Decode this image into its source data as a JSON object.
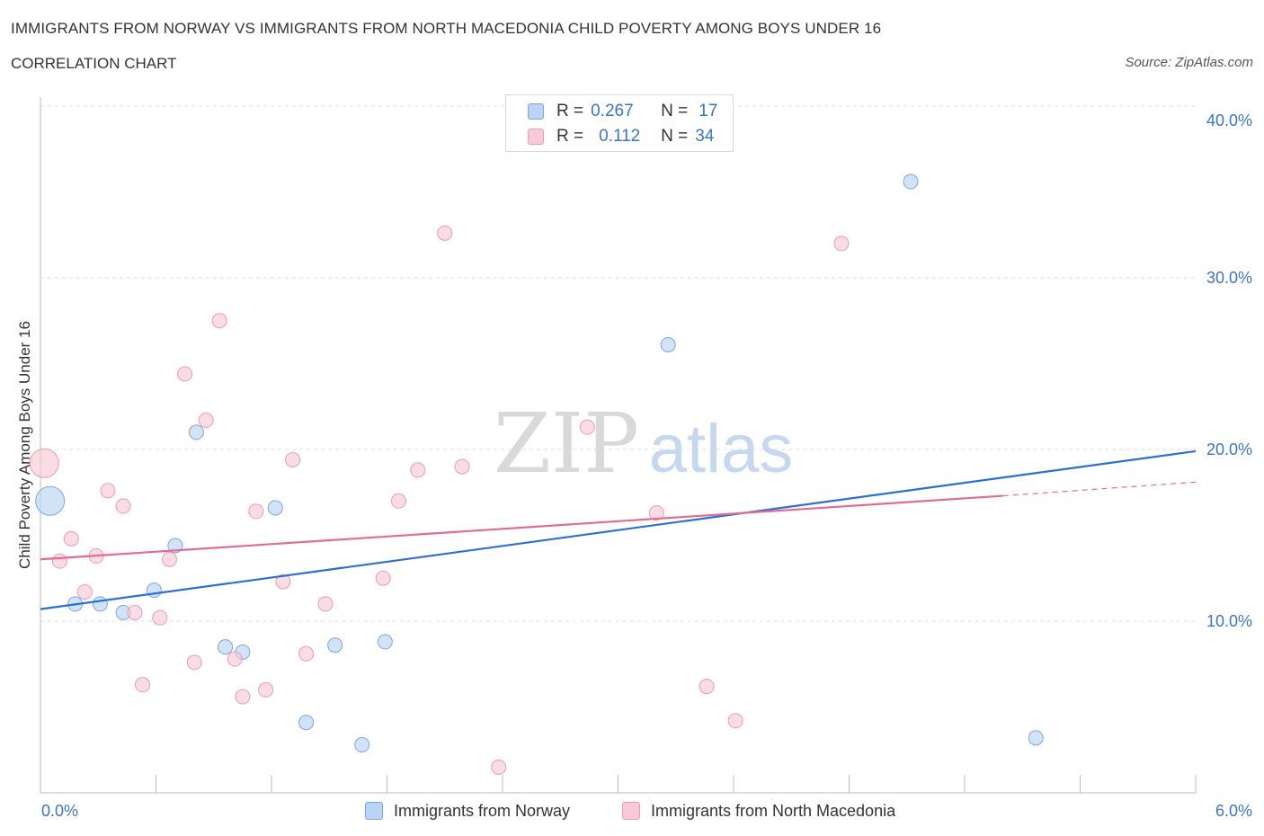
{
  "header": {
    "title": "IMMIGRANTS FROM NORWAY VS IMMIGRANTS FROM NORTH MACEDONIA CHILD POVERTY AMONG BOYS UNDER 16",
    "subtitle": "CORRELATION CHART",
    "source": "Source: ZipAtlas.com"
  },
  "watermark": {
    "zip": "ZIP",
    "atlas": "atlas"
  },
  "legend": {
    "rows": [
      {
        "r_label": "R =",
        "r_value": "0.267",
        "n_label": "N =",
        "n_value": "17"
      },
      {
        "r_label": "R =",
        "r_value": "0.112",
        "n_label": "N =",
        "n_value": "34"
      }
    ]
  },
  "colors": {
    "norway_fill": "#bcd4f3",
    "norway_stroke": "#7aa6e0",
    "norway_line": "#2b6fd1",
    "macedonia_fill": "#f8c9d6",
    "macedonia_stroke": "#ec9ab2",
    "macedonia_line": "#e26b95",
    "tick_text": "#3a74c9",
    "grid": "#dddddd"
  },
  "chart_data": {
    "type": "scatter",
    "title": "IMMIGRANTS FROM NORWAY VS IMMIGRANTS FROM NORTH MACEDONIA CHILD POVERTY AMONG BOYS UNDER 16",
    "xlabel": "",
    "ylabel": "Child Poverty Among Boys Under 16",
    "xlim": [
      0,
      6
    ],
    "ylim": [
      0,
      40
    ],
    "x_tick_labels": [
      "0.0%",
      "6.0%"
    ],
    "y_ticks": [
      10,
      20,
      30,
      40
    ],
    "y_tick_labels": [
      "10.0%",
      "20.0%",
      "30.0%",
      "40.0%"
    ],
    "series": [
      {
        "name": "Immigrants from Norway",
        "r": 0.267,
        "n": 17,
        "points": [
          {
            "x": 0.05,
            "y": 17.0,
            "big": true
          },
          {
            "x": 0.18,
            "y": 11.0
          },
          {
            "x": 0.31,
            "y": 11.0
          },
          {
            "x": 0.43,
            "y": 10.5
          },
          {
            "x": 0.59,
            "y": 11.8
          },
          {
            "x": 0.7,
            "y": 14.4
          },
          {
            "x": 0.81,
            "y": 21.0
          },
          {
            "x": 0.96,
            "y": 8.5
          },
          {
            "x": 1.05,
            "y": 8.2
          },
          {
            "x": 1.22,
            "y": 16.6
          },
          {
            "x": 1.38,
            "y": 4.1
          },
          {
            "x": 1.53,
            "y": 8.6
          },
          {
            "x": 1.67,
            "y": 2.8
          },
          {
            "x": 1.79,
            "y": 8.8
          },
          {
            "x": 3.26,
            "y": 26.1
          },
          {
            "x": 4.52,
            "y": 35.6
          },
          {
            "x": 5.17,
            "y": 3.2
          }
        ],
        "trend": {
          "x0": 0.0,
          "y0": 10.7,
          "x1": 6.0,
          "y1": 19.9
        }
      },
      {
        "name": "Immigrants from North Macedonia",
        "r": 0.112,
        "n": 34,
        "points": [
          {
            "x": 0.02,
            "y": 19.2,
            "big": true
          },
          {
            "x": 0.1,
            "y": 13.5
          },
          {
            "x": 0.16,
            "y": 14.8
          },
          {
            "x": 0.23,
            "y": 11.7
          },
          {
            "x": 0.29,
            "y": 13.8
          },
          {
            "x": 0.35,
            "y": 17.6
          },
          {
            "x": 0.43,
            "y": 16.7
          },
          {
            "x": 0.49,
            "y": 10.5
          },
          {
            "x": 0.53,
            "y": 6.3
          },
          {
            "x": 0.62,
            "y": 10.2
          },
          {
            "x": 0.67,
            "y": 13.6
          },
          {
            "x": 0.75,
            "y": 24.4
          },
          {
            "x": 0.8,
            "y": 7.6
          },
          {
            "x": 0.86,
            "y": 21.7
          },
          {
            "x": 0.93,
            "y": 27.5
          },
          {
            "x": 1.01,
            "y": 7.8
          },
          {
            "x": 1.05,
            "y": 5.6
          },
          {
            "x": 1.12,
            "y": 16.4
          },
          {
            "x": 1.17,
            "y": 6.0
          },
          {
            "x": 1.26,
            "y": 12.3
          },
          {
            "x": 1.31,
            "y": 19.4
          },
          {
            "x": 1.38,
            "y": 8.1
          },
          {
            "x": 1.48,
            "y": 11.0
          },
          {
            "x": 1.78,
            "y": 12.5
          },
          {
            "x": 1.86,
            "y": 17.0
          },
          {
            "x": 1.96,
            "y": 18.8
          },
          {
            "x": 2.1,
            "y": 32.6
          },
          {
            "x": 2.19,
            "y": 19.0
          },
          {
            "x": 2.38,
            "y": 1.5
          },
          {
            "x": 2.84,
            "y": 21.3
          },
          {
            "x": 3.2,
            "y": 16.3
          },
          {
            "x": 3.46,
            "y": 6.2
          },
          {
            "x": 3.61,
            "y": 4.2
          },
          {
            "x": 4.16,
            "y": 32.0
          }
        ],
        "trend": {
          "x0": 0.0,
          "y0": 13.6,
          "x1": 5.0,
          "y1": 17.3,
          "dash_to_x": 6.0,
          "dash_to_y": 18.1
        }
      }
    ]
  },
  "bottom_legend": {
    "norway_label": "Immigrants from Norway",
    "macedonia_label": "Immigrants from North Macedonia"
  }
}
